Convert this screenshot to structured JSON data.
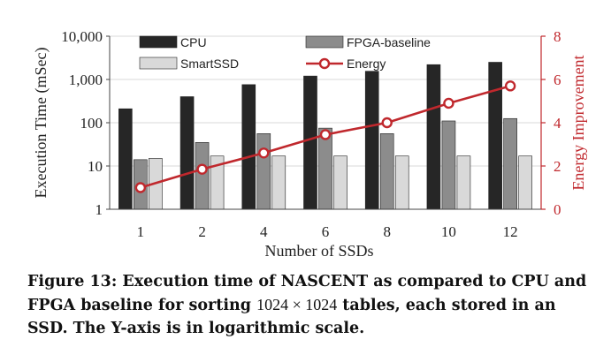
{
  "chart_data": {
    "type": "bar",
    "categories": [
      "1",
      "2",
      "4",
      "6",
      "8",
      "10",
      "12"
    ],
    "series": [
      {
        "name": "CPU",
        "kind": "bar",
        "axis": "left",
        "color": "#262626",
        "values": [
          210,
          400,
          760,
          1200,
          1550,
          2200,
          2500
        ]
      },
      {
        "name": "FPGA-baseline",
        "kind": "bar",
        "axis": "left",
        "color": "#8c8c8c",
        "values": [
          14,
          35,
          56,
          75,
          56,
          110,
          125
        ]
      },
      {
        "name": "SmartSSD",
        "kind": "bar",
        "axis": "left",
        "color": "#d9d9d9",
        "values": [
          15,
          17,
          17,
          17,
          17,
          17,
          17
        ]
      },
      {
        "name": "Energy",
        "kind": "line",
        "axis": "right",
        "color": "#c0282d",
        "values": [
          1.0,
          1.85,
          2.6,
          3.45,
          4.0,
          4.9,
          5.7
        ]
      }
    ],
    "xlabel": "Number of SSDs",
    "ylabel": "Execution Time (mSec)",
    "y2label": "Energy Improvement",
    "yscale": "log",
    "ylim": [
      1,
      10000
    ],
    "yticks": [
      "1",
      "10",
      "100",
      "1,000",
      "10,000"
    ],
    "y2lim": [
      0,
      8
    ],
    "y2ticks": [
      "0",
      "2",
      "4",
      "6",
      "8"
    ],
    "legend_position": "top"
  },
  "caption": {
    "part1": "Figure 13: Execution time of NASCENT as compared to CPU and FPGA baseline for sorting ",
    "math": "1024 × 1024",
    "part2": " tables, each stored in an SSD. The Y-axis is in logarithmic scale."
  }
}
